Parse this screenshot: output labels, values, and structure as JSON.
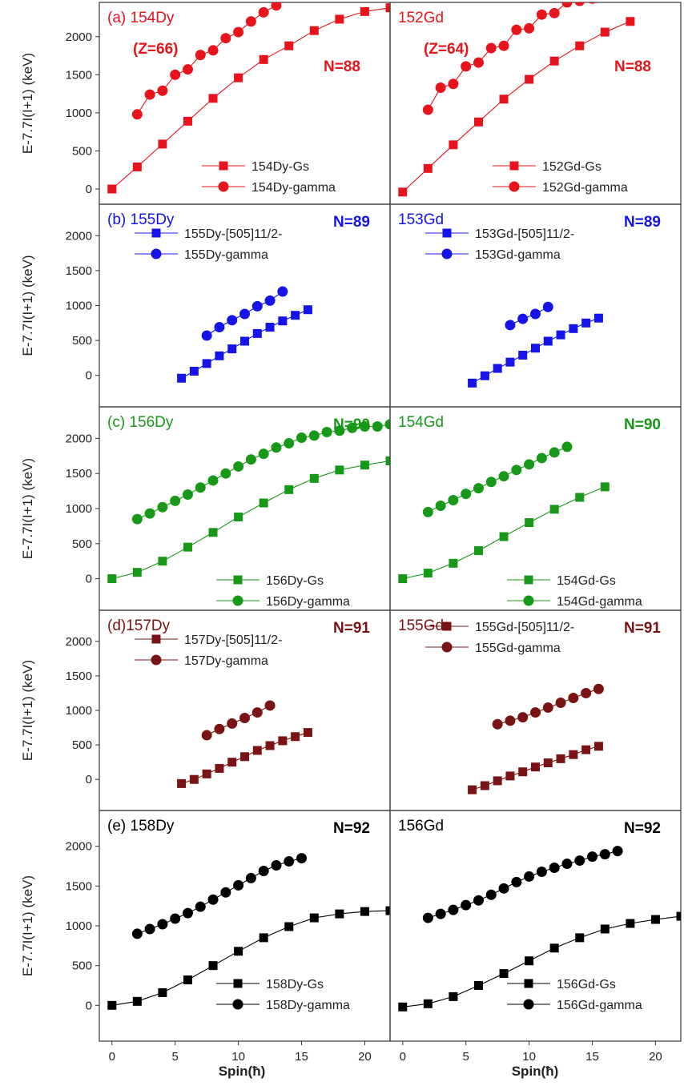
{
  "figure": {
    "ylabel": "E-7.7I(I+1) (keV)",
    "xlabel": "Spin(ħ)",
    "x_ticks": [
      0,
      5,
      10,
      15,
      20
    ],
    "y_ticks": [
      0,
      500,
      1000,
      1500,
      2000
    ]
  },
  "chart_data": [
    {
      "type": "line",
      "panel": "a-Dy",
      "color": "#e8141c",
      "xlim": [
        -1,
        22
      ],
      "ylim": [
        -200,
        2450
      ],
      "title": "(a) 154Dy",
      "subtitle": "(Z=66)",
      "n_label": "N=88",
      "series": [
        {
          "name": "154Dy-Gs",
          "marker": "square",
          "x": [
            0,
            2,
            4,
            6,
            8,
            10,
            12,
            14,
            16,
            18,
            20,
            22
          ],
          "y": [
            0,
            290,
            590,
            890,
            1190,
            1460,
            1700,
            1880,
            2080,
            2230,
            2330,
            2380
          ]
        },
        {
          "name": "154Dy-gamma",
          "marker": "circle",
          "x": [
            2,
            3,
            4,
            5,
            6,
            7,
            8,
            9,
            10,
            11,
            12,
            13
          ],
          "y": [
            980,
            1240,
            1290,
            1500,
            1570,
            1760,
            1820,
            1980,
            2060,
            2200,
            2320,
            2410
          ]
        }
      ]
    },
    {
      "type": "line",
      "panel": "a-Gd",
      "color": "#e8141c",
      "xlim": [
        -1,
        22
      ],
      "ylim": [
        -200,
        2450
      ],
      "title": "152Gd",
      "subtitle": "(Z=64)",
      "n_label": "N=88",
      "series": [
        {
          "name": "152Gd-Gs",
          "marker": "square",
          "x": [
            0,
            2,
            4,
            6,
            8,
            10,
            12,
            14,
            16,
            18
          ],
          "y": [
            -40,
            270,
            580,
            880,
            1180,
            1440,
            1680,
            1880,
            2060,
            2200
          ]
        },
        {
          "name": "152Gd-gamma",
          "marker": "circle",
          "x": [
            2,
            3,
            4,
            5,
            6,
            7,
            8,
            9,
            10,
            11,
            12,
            13,
            14,
            15,
            16,
            17,
            18
          ],
          "y": [
            1040,
            1330,
            1380,
            1610,
            1660,
            1850,
            1880,
            2090,
            2110,
            2290,
            2310,
            2450,
            2470,
            2500,
            2520,
            2540,
            2560
          ]
        }
      ]
    },
    {
      "type": "line",
      "panel": "b-Dy",
      "color": "#1414e8",
      "xlim": [
        -1,
        22
      ],
      "ylim": [
        -450,
        2450
      ],
      "title": "(b) 155Dy",
      "n_label": "N=89",
      "series": [
        {
          "name": "155Dy-[505]11/2-",
          "marker": "square",
          "x": [
            5.5,
            6.5,
            7.5,
            8.5,
            9.5,
            10.5,
            11.5,
            12.5,
            13.5,
            14.5,
            15.5
          ],
          "y": [
            -40,
            60,
            170,
            280,
            380,
            490,
            600,
            690,
            780,
            860,
            940
          ]
        },
        {
          "name": "155Dy-gamma",
          "marker": "circle",
          "x": [
            7.5,
            8.5,
            9.5,
            10.5,
            11.5,
            12.5,
            13.5
          ],
          "y": [
            570,
            690,
            790,
            880,
            990,
            1070,
            1200
          ]
        }
      ]
    },
    {
      "type": "line",
      "panel": "b-Gd",
      "color": "#1414e8",
      "xlim": [
        -1,
        22
      ],
      "ylim": [
        -450,
        2450
      ],
      "title": "153Gd",
      "n_label": "N=89",
      "series": [
        {
          "name": "153Gd-[505]11/2-",
          "marker": "square",
          "x": [
            5.5,
            6.5,
            7.5,
            8.5,
            9.5,
            10.5,
            11.5,
            12.5,
            13.5,
            14.5,
            15.5
          ],
          "y": [
            -110,
            -5,
            100,
            190,
            290,
            390,
            490,
            580,
            670,
            750,
            820
          ]
        },
        {
          "name": "153Gd-gamma",
          "marker": "circle",
          "x": [
            8.5,
            9.5,
            10.5,
            11.5
          ],
          "y": [
            720,
            810,
            880,
            980
          ]
        }
      ]
    },
    {
      "type": "line",
      "panel": "c-Dy",
      "color": "#189818",
      "xlim": [
        -1,
        22
      ],
      "ylim": [
        -450,
        2450
      ],
      "title": "(c) 156Dy",
      "n_label": "N=90",
      "series": [
        {
          "name": "156Dy-Gs",
          "marker": "square",
          "x": [
            0,
            2,
            4,
            6,
            8,
            10,
            12,
            14,
            16,
            18,
            20,
            22
          ],
          "y": [
            0,
            90,
            250,
            450,
            660,
            880,
            1080,
            1270,
            1430,
            1550,
            1620,
            1680
          ]
        },
        {
          "name": "156Dy-gamma",
          "marker": "circle",
          "x": [
            2,
            3,
            4,
            5,
            6,
            7,
            8,
            9,
            10,
            11,
            12,
            13,
            14,
            15,
            16,
            17,
            18,
            19,
            20,
            21,
            22
          ],
          "y": [
            850,
            930,
            1020,
            1110,
            1200,
            1300,
            1400,
            1500,
            1600,
            1700,
            1780,
            1870,
            1930,
            2010,
            2040,
            2090,
            2110,
            2150,
            2170,
            2170,
            2200
          ]
        }
      ]
    },
    {
      "type": "line",
      "panel": "c-Gd",
      "color": "#189818",
      "xlim": [
        -1,
        22
      ],
      "ylim": [
        -450,
        2450
      ],
      "title": "154Gd",
      "n_label": "N=90",
      "series": [
        {
          "name": "154Gd-Gs",
          "marker": "square",
          "x": [
            0,
            2,
            4,
            6,
            8,
            10,
            12,
            14,
            16
          ],
          "y": [
            0,
            80,
            220,
            400,
            600,
            800,
            990,
            1160,
            1310
          ]
        },
        {
          "name": "154Gd-gamma",
          "marker": "circle",
          "x": [
            2,
            3,
            4,
            5,
            6,
            7,
            8,
            9,
            10,
            11,
            12,
            13
          ],
          "y": [
            950,
            1040,
            1120,
            1210,
            1290,
            1380,
            1460,
            1550,
            1630,
            1720,
            1800,
            1880
          ]
        }
      ]
    },
    {
      "type": "line",
      "panel": "d-Dy",
      "color": "#7a1414",
      "xlim": [
        -1,
        22
      ],
      "ylim": [
        -450,
        2450
      ],
      "title": "(d)157Dy",
      "n_label": "N=91",
      "series": [
        {
          "name": "157Dy-[505]11/2-",
          "marker": "square",
          "x": [
            5.5,
            6.5,
            7.5,
            8.5,
            9.5,
            10.5,
            11.5,
            12.5,
            13.5,
            14.5,
            15.5
          ],
          "y": [
            -60,
            0,
            80,
            160,
            250,
            330,
            420,
            490,
            560,
            620,
            680
          ]
        },
        {
          "name": "157Dy-gamma",
          "marker": "circle",
          "x": [
            7.5,
            8.5,
            9.5,
            10.5,
            11.5,
            12.5
          ],
          "y": [
            640,
            730,
            810,
            890,
            970,
            1070
          ]
        }
      ]
    },
    {
      "type": "line",
      "panel": "d-Gd",
      "color": "#7a1414",
      "xlim": [
        -1,
        22
      ],
      "ylim": [
        -450,
        2450
      ],
      "title": "155Gd",
      "n_label": "N=91",
      "series": [
        {
          "name": "155Gd-[505]11/2-",
          "marker": "square",
          "x": [
            5.5,
            6.5,
            7.5,
            8.5,
            9.5,
            10.5,
            11.5,
            12.5,
            13.5,
            14.5,
            15.5
          ],
          "y": [
            -150,
            -90,
            -20,
            50,
            110,
            180,
            240,
            300,
            360,
            430,
            480
          ]
        },
        {
          "name": "155Gd-gamma",
          "marker": "circle",
          "x": [
            7.5,
            8.5,
            9.5,
            10.5,
            11.5,
            12.5,
            13.5,
            14.5,
            15.5
          ],
          "y": [
            800,
            850,
            900,
            970,
            1040,
            1110,
            1180,
            1250,
            1310
          ]
        }
      ]
    },
    {
      "type": "line",
      "panel": "e-Dy",
      "color": "#000000",
      "xlim": [
        -1,
        22
      ],
      "ylim": [
        -450,
        2450
      ],
      "title": "(e) 158Dy",
      "n_label": "N=92",
      "series": [
        {
          "name": "158Dy-Gs",
          "marker": "square",
          "x": [
            0,
            2,
            4,
            6,
            8,
            10,
            12,
            14,
            16,
            18,
            20,
            22
          ],
          "y": [
            0,
            50,
            160,
            320,
            500,
            680,
            850,
            990,
            1100,
            1150,
            1180,
            1190
          ]
        },
        {
          "name": "158Dy-gamma",
          "marker": "circle",
          "x": [
            2,
            3,
            4,
            5,
            6,
            7,
            8,
            9,
            10,
            11,
            12,
            13,
            14,
            15
          ],
          "y": [
            900,
            960,
            1020,
            1090,
            1160,
            1240,
            1330,
            1420,
            1510,
            1600,
            1690,
            1760,
            1810,
            1850
          ]
        }
      ]
    },
    {
      "type": "line",
      "panel": "e-Gd",
      "color": "#000000",
      "xlim": [
        -1,
        22
      ],
      "ylim": [
        -450,
        2450
      ],
      "title": "156Gd",
      "n_label": "N=92",
      "series": [
        {
          "name": "156Gd-Gs",
          "marker": "square",
          "x": [
            0,
            2,
            4,
            6,
            8,
            10,
            12,
            14,
            16,
            18,
            20,
            22
          ],
          "y": [
            -20,
            20,
            110,
            250,
            400,
            560,
            720,
            850,
            960,
            1030,
            1080,
            1120
          ]
        },
        {
          "name": "156Gd-gamma",
          "marker": "circle",
          "x": [
            2,
            3,
            4,
            5,
            6,
            7,
            8,
            9,
            10,
            11,
            12,
            13,
            14,
            15,
            16,
            17
          ],
          "y": [
            1100,
            1150,
            1200,
            1260,
            1320,
            1390,
            1470,
            1550,
            1620,
            1680,
            1730,
            1780,
            1820,
            1870,
            1900,
            1940
          ]
        }
      ]
    }
  ]
}
